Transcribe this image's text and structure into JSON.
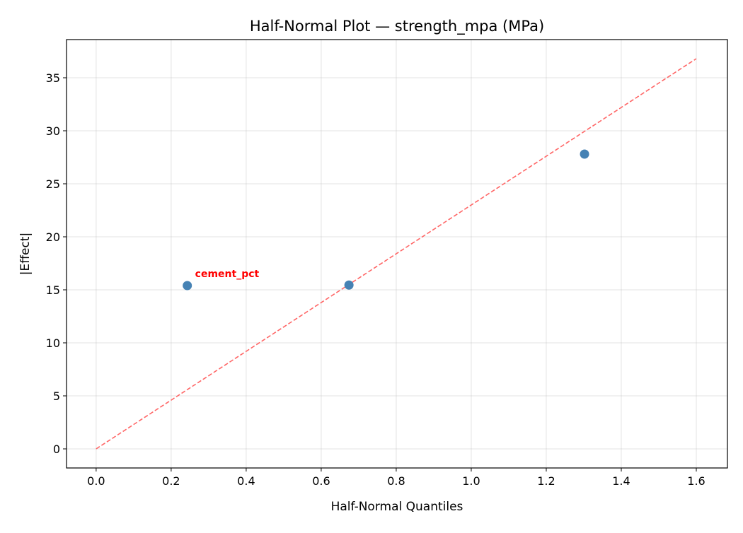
{
  "chart_data": {
    "type": "scatter",
    "title": "Half-Normal Plot — strength_mpa (MPa)",
    "xlabel": "Half-Normal Quantiles",
    "ylabel": "|Effect|",
    "xlim": [
      -0.079,
      1.683
    ],
    "ylim": [
      -1.8,
      38.6
    ],
    "xticks": [
      0.0,
      0.2,
      0.4,
      0.6,
      0.8,
      1.0,
      1.2,
      1.4,
      1.6
    ],
    "xtick_labels": [
      "0.0",
      "0.2",
      "0.4",
      "0.6",
      "0.8",
      "1.0",
      "1.2",
      "1.4",
      "1.6"
    ],
    "yticks": [
      0,
      5,
      10,
      15,
      20,
      25,
      30,
      35
    ],
    "ytick_labels": [
      "0",
      "5",
      "10",
      "15",
      "20",
      "25",
      "30",
      "35"
    ],
    "grid": true,
    "points": [
      {
        "x": 0.243,
        "y": 15.4,
        "label": "cement_pct"
      },
      {
        "x": 0.674,
        "y": 15.45,
        "label": ""
      },
      {
        "x": 1.302,
        "y": 27.8,
        "label": ""
      }
    ],
    "reference_line": {
      "x": [
        0.0,
        1.6
      ],
      "y": [
        0.0,
        36.8
      ],
      "style": "dashed",
      "color": "#ff6666"
    },
    "point_color": "#4682b4",
    "label_color": "#ff0000"
  }
}
